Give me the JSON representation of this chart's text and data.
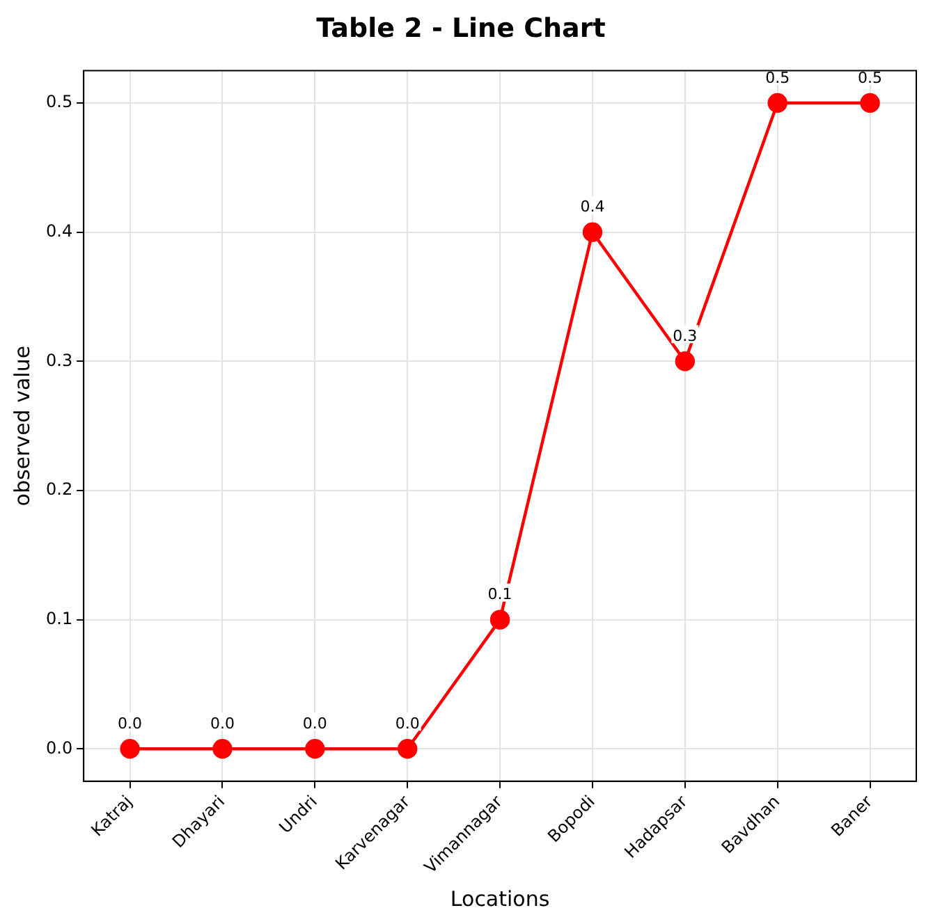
{
  "chart_data": {
    "type": "line",
    "title": "Table 2 - Line Chart",
    "xlabel": "Locations",
    "ylabel": "observed value",
    "categories": [
      "Katraj",
      "Dhayari",
      "Undri",
      "Karvenagar",
      "Vimannagar",
      "Bopodi",
      "Hadapsar",
      "Bavdhan",
      "Baner"
    ],
    "series": [
      {
        "color": "#ff0000",
        "values": [
          0,
          0,
          0,
          0,
          0.1,
          0.4,
          0.3,
          0.5,
          0.5
        ],
        "value_labels": [
          "0.0",
          "0.0",
          "0.0",
          "0.0",
          "0.1",
          "0.4",
          "0.3",
          "0.5",
          "0.5"
        ]
      }
    ],
    "ylim": [
      -0.025,
      0.525
    ],
    "yticks": [
      {
        "value": 0,
        "label": "0.0"
      },
      0.1,
      0.2,
      0.3,
      0.4,
      0.5
    ],
    "grid": true,
    "legend": false,
    "marker": "circle",
    "line_style": "solid"
  }
}
